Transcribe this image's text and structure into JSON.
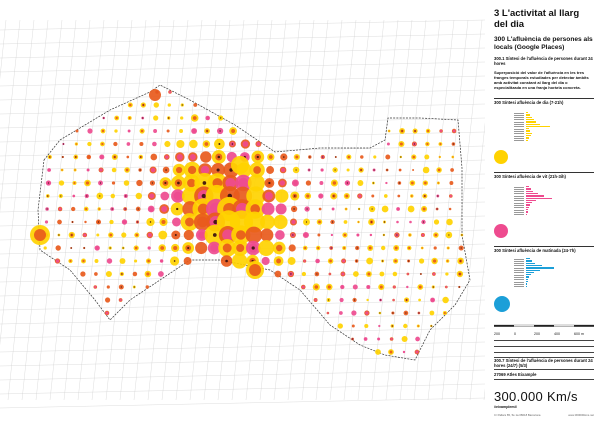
{
  "colors": {
    "day": "#ffd200",
    "afternoon": "#e85a1c",
    "night": "#ee4b8f",
    "late": "#1c9fd8",
    "core": "#3a1010",
    "grid": "#cfcfcf",
    "boundary": "#333333"
  },
  "title": "3 L'activitat al llarg del dia",
  "subtitle": "300 L'afluència de persones als locals (Google Places)",
  "section": "300.1 Síntesi de l'afluència de persones durant 24 hores",
  "description": "Superposició del valor de l'afluència en les tres franges temporals estudiades per detectar àmbits amb activitat constant al llarg del dia o especialitzada en una franja horària concreta.",
  "legends": [
    {
      "title": "300 Síntesi afluència de dia (7-21h)",
      "color": "#ffd200"
    },
    {
      "title": "300 Síntesi afluència de vit (21h-3ih)",
      "color": "#ee4b8f"
    },
    {
      "title": "300 Síntesi afluència de matinada (24-7h)",
      "color": "#1c9fd8"
    }
  ],
  "scale": {
    "labels": [
      "200",
      "0",
      "200",
      "400",
      "600 m"
    ]
  },
  "section2": "300.7 Síntesi de l'afluència de persones durant 24 hores (24/7) (5/3)",
  "atlas": "27069 Atles Eixample",
  "brand": "300.000 Km/s",
  "brand_sub": "#eixamplemil",
  "footer_left": "C/ Pallars 85, 5è 1a 08018 Barcelona",
  "footer_right": "www.300000kms.net",
  "map": {
    "rows": 16,
    "cols": 30,
    "seed": 7
  }
}
